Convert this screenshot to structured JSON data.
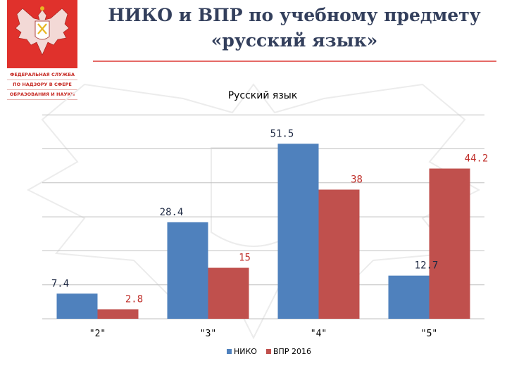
{
  "header": {
    "title_line1": "НИКО и ВПР по учебному предмету",
    "title_line2": "«русский язык»",
    "agency_lines": [
      "ФЕДЕРАЛЬНАЯ СЛУЖБА",
      "ПО НАДЗОРУ В СФЕРЕ",
      "ОБРАЗОВАНИЯ И НАУКИ"
    ]
  },
  "colors": {
    "brand_red": "#e0312c",
    "title_color": "#333f5c",
    "niko_blue": "#4f81bd",
    "vpr_red": "#c0504d"
  },
  "chart_data": {
    "type": "bar",
    "title": "Русский язык",
    "categories": [
      "\"2\"",
      "\"3\"",
      "\"4\"",
      "\"5\""
    ],
    "series": [
      {
        "name": "НИКО",
        "values": [
          7.4,
          28.4,
          51.5,
          12.7
        ],
        "color": "#4f81bd"
      },
      {
        "name": "ВПР 2016",
        "values": [
          2.8,
          15,
          38,
          44.2
        ],
        "color": "#c0504d"
      }
    ],
    "ylim": [
      0,
      60
    ],
    "y_gridlines": [
      0,
      10,
      20,
      30,
      40,
      50,
      60
    ],
    "grid": true,
    "y_tick_labels_shown": false,
    "legend_position": "bottom"
  }
}
